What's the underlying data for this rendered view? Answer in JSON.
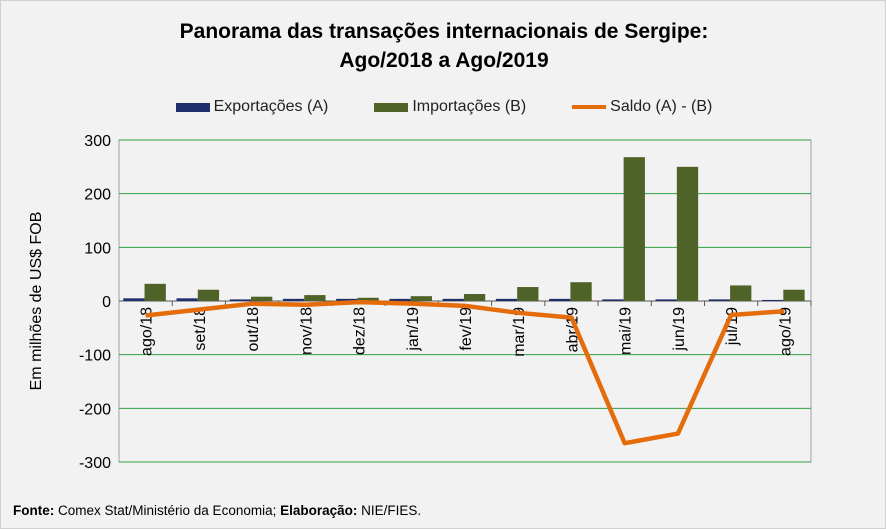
{
  "chart_data": {
    "type": "bar",
    "title_line1": "Panorama  das transações internacionais de Sergipe:",
    "title_line2": "Ago/2018 a Ago/2019",
    "ylabel": "Em milhões de US$ FOB",
    "ylim": [
      -300,
      300
    ],
    "yticks": [
      "300",
      "200",
      "100",
      "0",
      "-100",
      "-200",
      "-300"
    ],
    "ytick_values": [
      300,
      200,
      100,
      0,
      -100,
      -200,
      -300
    ],
    "categories": [
      "ago/18",
      "set/18",
      "out/18",
      "nov/18",
      "dez/18",
      "jan/19",
      "fev/19",
      "mar/19",
      "abr/19",
      "mai/19",
      "jun/19",
      "jul/19",
      "ago/19"
    ],
    "series": [
      {
        "name": "Exportações (A)",
        "type": "bar",
        "color": "#1f2f6b",
        "values": [
          5,
          5,
          3,
          4,
          4,
          4,
          4,
          4,
          4,
          3,
          3,
          3,
          2
        ]
      },
      {
        "name": "Importações (B)",
        "type": "bar",
        "color": "#4f6228",
        "values": [
          32,
          21,
          8,
          11,
          6,
          9,
          13,
          26,
          35,
          268,
          250,
          29,
          21
        ]
      },
      {
        "name": "Saldo (A) - (B)",
        "type": "line",
        "color": "#e46c0a",
        "values": [
          -27,
          -16,
          -5,
          -7,
          -2,
          -5,
          -9,
          -22,
          -31,
          -265,
          -247,
          -26,
          -19
        ]
      }
    ],
    "grid": true,
    "legend_position": "top"
  },
  "footer": {
    "fonte_label": "Fonte:",
    "fonte_text": " Comex Stat/Ministério da Economia; ",
    "elab_label": "Elaboração:",
    "elab_text": " NIE/FIES."
  }
}
